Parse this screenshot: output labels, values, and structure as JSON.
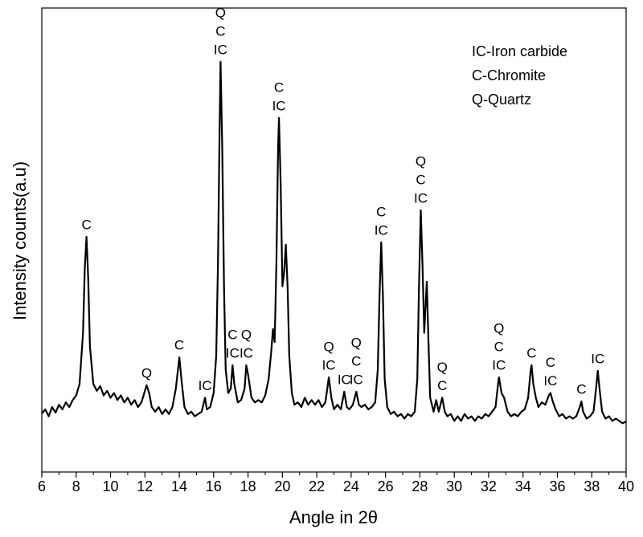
{
  "chart_data": {
    "type": "line",
    "x_label": "Angle in 2θ",
    "y_label": "Intensity counts(a.u)",
    "color": "#000000",
    "xlim": [
      6,
      40
    ],
    "xticks": [
      6,
      8,
      10,
      12,
      14,
      16,
      18,
      20,
      22,
      24,
      26,
      28,
      30,
      32,
      34,
      36,
      38,
      40
    ],
    "ylim": [
      0,
      100
    ],
    "notes": [
      "IC-Iron carbide",
      "C-Chromite",
      "Q-Quartz"
    ],
    "x": [
      6.0,
      6.2,
      6.4,
      6.6,
      6.8,
      7.0,
      7.2,
      7.4,
      7.6,
      7.8,
      8.0,
      8.2,
      8.4,
      8.5,
      8.6,
      8.7,
      8.8,
      9.0,
      9.2,
      9.4,
      9.6,
      9.8,
      10.0,
      10.2,
      10.4,
      10.6,
      10.8,
      11.0,
      11.2,
      11.4,
      11.6,
      11.8,
      12.0,
      12.1,
      12.25,
      12.4,
      12.6,
      12.8,
      13.0,
      13.2,
      13.4,
      13.6,
      13.8,
      14.0,
      14.15,
      14.3,
      14.5,
      14.7,
      14.9,
      15.1,
      15.3,
      15.5,
      15.6,
      15.8,
      16.0,
      16.15,
      16.25,
      16.35,
      16.4,
      16.5,
      16.6,
      16.7,
      16.85,
      17.0,
      17.1,
      17.2,
      17.4,
      17.6,
      17.8,
      17.9,
      18.0,
      18.2,
      18.4,
      18.6,
      18.8,
      19.0,
      19.2,
      19.35,
      19.45,
      19.55,
      19.65,
      19.75,
      19.8,
      19.9,
      20.0,
      20.1,
      20.2,
      20.3,
      20.4,
      20.55,
      20.7,
      20.9,
      21.1,
      21.3,
      21.5,
      21.7,
      21.9,
      22.1,
      22.3,
      22.5,
      22.7,
      22.85,
      23.0,
      23.2,
      23.4,
      23.6,
      23.75,
      23.9,
      24.1,
      24.3,
      24.45,
      24.6,
      24.8,
      25.0,
      25.2,
      25.4,
      25.55,
      25.65,
      25.75,
      25.85,
      25.95,
      26.1,
      26.3,
      26.5,
      26.7,
      26.9,
      27.1,
      27.3,
      27.5,
      27.7,
      27.85,
      27.95,
      28.05,
      28.15,
      28.25,
      28.4,
      28.5,
      28.6,
      28.8,
      28.95,
      29.1,
      29.3,
      29.45,
      29.6,
      29.8,
      30.0,
      30.2,
      30.4,
      30.6,
      30.8,
      31.0,
      31.2,
      31.4,
      31.6,
      31.8,
      32.0,
      32.2,
      32.4,
      32.55,
      32.6,
      32.75,
      32.9,
      33.1,
      33.3,
      33.5,
      33.7,
      33.9,
      34.1,
      34.3,
      34.45,
      34.5,
      34.6,
      34.75,
      34.9,
      35.1,
      35.3,
      35.5,
      35.6,
      35.75,
      35.9,
      36.1,
      36.3,
      36.5,
      36.7,
      36.9,
      37.1,
      37.3,
      37.4,
      37.5,
      37.7,
      37.9,
      38.1,
      38.25,
      38.35,
      38.45,
      38.6,
      38.8,
      39.0,
      39.2,
      39.4,
      39.6,
      39.8,
      40.0
    ],
    "values": [
      12.6,
      13.5,
      12,
      14,
      12.8,
      14.5,
      13.5,
      15,
      14,
      15.5,
      16.5,
      19,
      30,
      44,
      50.7,
      42,
      27,
      19,
      17.5,
      18.5,
      16.5,
      17.5,
      16,
      17,
      15.5,
      16.5,
      15,
      16,
      14.5,
      15.5,
      14,
      15,
      17.5,
      18.7,
      17,
      14,
      13,
      14,
      12.5,
      13.5,
      12.5,
      14,
      18,
      24.7,
      19,
      14,
      12.5,
      13,
      12,
      12.5,
      13,
      16,
      13.5,
      14,
      17,
      25,
      45,
      75,
      88.4,
      70,
      40,
      22,
      17,
      18,
      23,
      19,
      15,
      15.5,
      18,
      23,
      21,
      16,
      15,
      15.5,
      15,
      16.5,
      20,
      26,
      30.8,
      28,
      45,
      70,
      76.3,
      62,
      40,
      43,
      49,
      40,
      25,
      17,
      14.5,
      15,
      14,
      16,
      14.5,
      15.5,
      14.5,
      15.5,
      14,
      15,
      20.4,
      16,
      13.5,
      14.5,
      13.5,
      17.3,
      14,
      13.5,
      14.5,
      17.3,
      14.5,
      14,
      14.5,
      13.5,
      14,
      15,
      22,
      38,
      49.5,
      38,
      20,
      14,
      12.5,
      13,
      12,
      12.5,
      11.5,
      12.5,
      12,
      13,
      20,
      40,
      56.4,
      45,
      30,
      41,
      28,
      16,
      13,
      15.5,
      13,
      16,
      13,
      12,
      12.5,
      11,
      12,
      11,
      12.5,
      11.5,
      12,
      11,
      12,
      11.5,
      12.5,
      12,
      13,
      14,
      19,
      20.4,
      17,
      16,
      13,
      12,
      12.5,
      12,
      13,
      13.5,
      16,
      22,
      23,
      19,
      16,
      14,
      15,
      14.5,
      16.5,
      17,
      15,
      13.5,
      12,
      12.5,
      11.5,
      12,
      11.5,
      12,
      14,
      15.2,
      13,
      11.5,
      12,
      13,
      18,
      21.8,
      18,
      13,
      11.5,
      12,
      11,
      11.5,
      11,
      10.5,
      10.9
    ],
    "annotations": [
      {
        "x": 8.6,
        "text": [
          "C"
        ]
      },
      {
        "x": 12.1,
        "text": [
          "Q"
        ]
      },
      {
        "x": 14.0,
        "text": [
          "C"
        ]
      },
      {
        "x": 15.5,
        "text": [
          "IC"
        ]
      },
      {
        "x": 16.4,
        "text": [
          "Q",
          "C",
          "IC"
        ]
      },
      {
        "x": 17.1,
        "text": [
          "C",
          "IC"
        ]
      },
      {
        "x": 17.9,
        "text": [
          "Q",
          "IC"
        ]
      },
      {
        "x": 19.8,
        "text": [
          "C",
          "IC"
        ]
      },
      {
        "x": 22.7,
        "text": [
          "Q",
          "IC"
        ]
      },
      {
        "x": 23.6,
        "text": [
          "IC"
        ]
      },
      {
        "x": 24.3,
        "text": [
          "Q",
          "C",
          "IC"
        ]
      },
      {
        "x": 25.75,
        "text": [
          "C",
          "IC"
        ]
      },
      {
        "x": 28.05,
        "text": [
          "Q",
          "C",
          "IC"
        ]
      },
      {
        "x": 29.3,
        "text": [
          "Q",
          "C"
        ]
      },
      {
        "x": 32.6,
        "text": [
          "Q",
          "C",
          "IC"
        ]
      },
      {
        "x": 34.5,
        "text": [
          "C"
        ]
      },
      {
        "x": 35.6,
        "text": [
          "C",
          "IC"
        ]
      },
      {
        "x": 37.4,
        "text": [
          "C"
        ]
      },
      {
        "x": 38.35,
        "text": [
          "IC"
        ]
      }
    ]
  }
}
